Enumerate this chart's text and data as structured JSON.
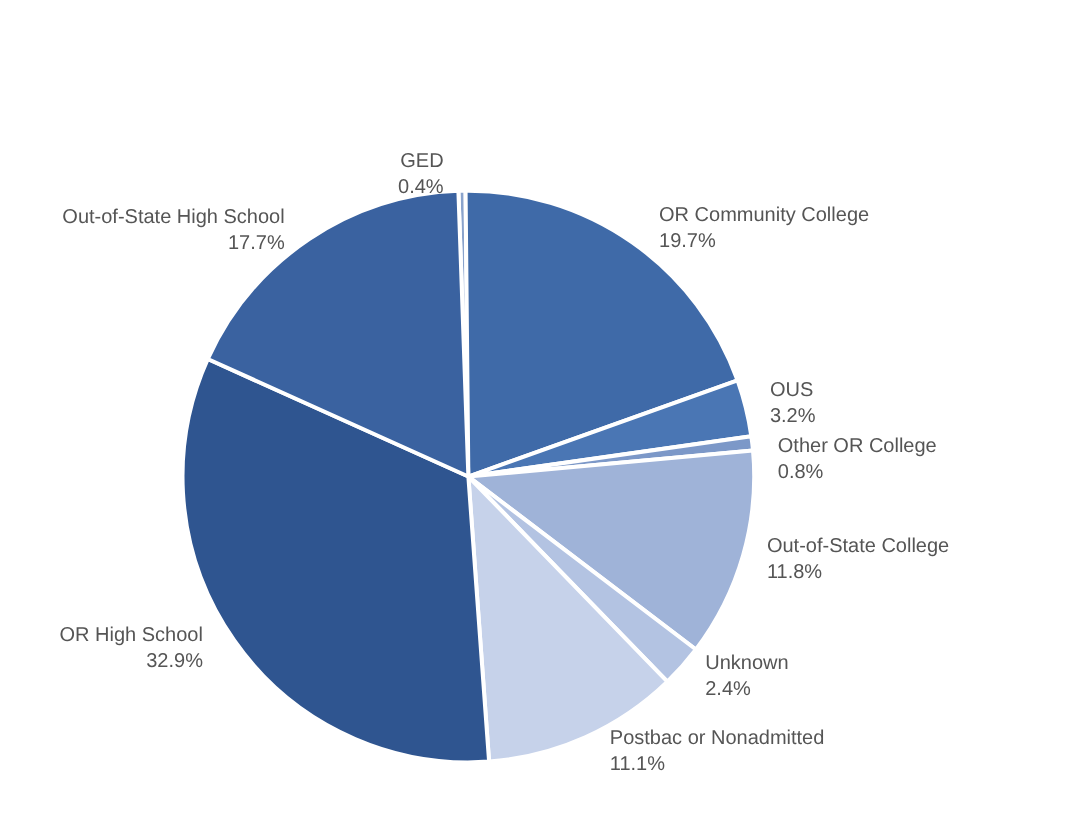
{
  "chart_data": {
    "type": "pie",
    "categories": [
      "GED",
      "OR Community College",
      "OUS",
      "Other OR College",
      "Out-of-State College",
      "Unknown",
      "Postbac or Nonadmitted",
      "OR High School",
      "Out-of-State High School"
    ],
    "values": [
      0.4,
      19.7,
      3.2,
      0.8,
      11.8,
      2.4,
      11.1,
      32.9,
      17.7
    ],
    "value_labels": [
      "0.4%",
      "19.7%",
      "3.2%",
      "0.8%",
      "11.8%",
      "2.4%",
      "11.1%",
      "32.9%",
      "17.7%"
    ],
    "colors": [
      "#8aa3cc",
      "#3f6aa8",
      "#4a76b4",
      "#7c98c8",
      "#9fb3d8",
      "#b3c3e2",
      "#c6d2ea",
      "#2f5590",
      "#3a62a0"
    ],
    "legend": false
  }
}
